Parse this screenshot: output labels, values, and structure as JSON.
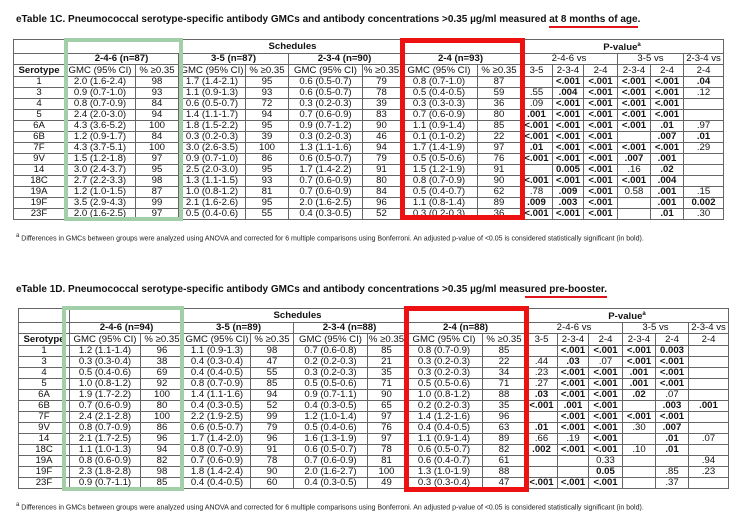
{
  "table_c": {
    "title_main": "eTable 1C. Pneumococcal serotype-specific antibody GMCs and antibody concentrations >0.35 µg/ml measured ",
    "title_emph": "at 8 months of age",
    "title_end": ".",
    "schedules_label": "Schedules",
    "pvalue_label": "P-value",
    "pvalue_sup": "a",
    "groups": [
      "2-4-6 (n=87)",
      "3-5 (n=87)",
      "2-3-4 (n=90)",
      "2-4 (n=93)"
    ],
    "pgroups": [
      "2-4-6 vs",
      "3-5 vs",
      "2-3-4 vs"
    ],
    "col_headers": [
      "Serotype",
      "GMC (95% CI)",
      "% ≥0.35",
      "GMC (95% CI)",
      "% ≥0.35",
      "GMC (95% CI)",
      "% ≥0.35",
      "GMC (95% CI)",
      "% ≥0.35",
      "3-5",
      "2-3-4",
      "2-4",
      "2-3-4",
      "2-4",
      "2-4"
    ],
    "rows": [
      [
        "1",
        "2.0 (1.6-2.4)",
        "98",
        "1.7 (1.4-2.1)",
        "95",
        "0.6 (0.5-0.7)",
        "79",
        "0.8 (0.7-1.0)",
        "87",
        "",
        "<.001",
        "<.001",
        "<.001",
        "<.001",
        ".04"
      ],
      [
        "3",
        "0.9 (0.7-1.0)",
        "93",
        "1.1 (0.9-1.3)",
        "93",
        "0.6 (0.5-0.7)",
        "78",
        "0.5 (0.4-0.5)",
        "59",
        ".55",
        ".004",
        "<.001",
        "<.001",
        "<.001",
        ".12"
      ],
      [
        "4",
        "0.8 (0.7-0.9)",
        "84",
        "0.6 (0.5-0.7)",
        "72",
        "0.3 (0.2-0.3)",
        "39",
        "0.3 (0.3-0.3)",
        "36",
        ".09",
        "<.001",
        "<.001",
        "<.001",
        "<.001",
        ""
      ],
      [
        "5",
        "2.4 (2.0-3.0)",
        "94",
        "1.4 (1.1-1.7)",
        "94",
        "0.7 (0.6-0.9)",
        "83",
        "0.7 (0.6-0.9)",
        "80",
        ".001",
        "<.001",
        "<.001",
        "<.001",
        "<.001",
        ""
      ],
      [
        "6A",
        "4.3 (3.6-5.2)",
        "100",
        "1.8 (1.5-2.2)",
        "95",
        "0.9 (0.7-1.2)",
        "90",
        "1.1 (0.9-1.4)",
        "85",
        "<.001",
        "<.001",
        "<.001",
        "<.001",
        ".01",
        ".97"
      ],
      [
        "6B",
        "1.2 (0.9-1.7)",
        "84",
        "0.3 (0.2-0.3)",
        "39",
        "0.3 (0.2-0.3)",
        "46",
        "0.1 (0.1-0.2)",
        "22",
        "<.001",
        "<.001",
        "<.001",
        "",
        ".007",
        ".01"
      ],
      [
        "7F",
        "4.3 (3.7-5.1)",
        "100",
        "3.0 (2.6-3.5)",
        "100",
        "1.3 (1.1-1.6)",
        "94",
        "1.7 (1.4-1.9)",
        "97",
        ".01",
        "<.001",
        "<.001",
        "<.001",
        "<.001",
        ".29"
      ],
      [
        "9V",
        "1.5 (1.2-1.8)",
        "97",
        "0.9 (0.7-1.0)",
        "86",
        "0.6 (0.5-0.7)",
        "79",
        "0.5 (0.5-0.6)",
        "76",
        "<.001",
        "<.001",
        "<.001",
        ".007",
        ".001",
        ""
      ],
      [
        "14",
        "3.0 (2.4-3.7)",
        "95",
        "2.5 (2.0-3.0)",
        "95",
        "1.7 (1.4-2.2)",
        "91",
        "1.5 (1.2-1.9)",
        "91",
        "",
        "0.005",
        "<.001",
        ".16",
        ".02",
        ""
      ],
      [
        "18C",
        "2.7 (2.2-3.3)",
        "98",
        "1.3 (1.1-1.5)",
        "93",
        "0.7 (0.6-0.9)",
        "80",
        "0.8 (0.7-0.9)",
        "90",
        "<.001",
        "<.001",
        "<.001",
        "<.001",
        ".004",
        ""
      ],
      [
        "19A",
        "1.2 (1.0-1.5)",
        "87",
        "1.0 (0.8-1.2)",
        "81",
        "0.7 (0.6-0.9)",
        "84",
        "0.5 (0.4-0.7)",
        "62",
        ".78",
        ".009",
        "<.001",
        "0.58",
        ".001",
        ".15"
      ],
      [
        "19F",
        "3.5 (2.9-4.3)",
        "99",
        "2.1 (1.6-2.6)",
        "95",
        "2.0 (1.6-2.5)",
        "96",
        "1.1 (0.8-1.4)",
        "89",
        ".009",
        ".003",
        "<.001",
        "",
        ".001",
        "0.002"
      ],
      [
        "23F",
        "2.0 (1.6-2.5)",
        "97",
        "0.5 (0.4-0.6)",
        "55",
        "0.4 (0.3-0.5)",
        "52",
        "0.3 (0.2-0.3)",
        "36",
        "<.001",
        "<.001",
        "<.001",
        "",
        ".01",
        ".30"
      ]
    ],
    "footnote_sup": "a",
    "footnote": " Differences in GMCs between groups were analyzed using ANOVA and corrected for 6 multiple comparisons using Bonferroni. An adjusted p-value of <0.05 is considered statistically significant (in bold)."
  },
  "table_d": {
    "title_main": "eTable 1D. Pneumococcal serotype-specific antibody GMCs and antibody concentrations >0.35 µg/ml meas",
    "title_emph": "ured pre-booster.",
    "title_end": "",
    "schedules_label": "Schedules",
    "pvalue_label": "P-value",
    "pvalue_sup": "a",
    "groups": [
      "2-4-6 (n=94)",
      "3-5 (n=89)",
      "2-3-4 (n=88)",
      "2-4 (n=88)"
    ],
    "pgroups": [
      "2-4-6 vs",
      "3-5 vs",
      "2-3-4 vs"
    ],
    "col_headers": [
      "Serotype",
      "GMC (95% CI)",
      "% ≥0.35",
      "GMC (95% CI)",
      "% ≥0.35",
      "GMC (95% CI)",
      "% ≥0.35",
      "GMC (95% CI)",
      "% ≥0.35",
      "3-5",
      "2-3-4",
      "2-4",
      "2-3-4",
      "2-4",
      "2-4"
    ],
    "rows": [
      [
        "1",
        "1.2 (1.1-1.4)",
        "96",
        "1.1 (0.9-1.3)",
        "98",
        "0.7 (0.6-0.8)",
        "85",
        "0.8 (0.7-0.9)",
        "85",
        "",
        "<.001",
        "<.001",
        "<.001",
        "0.003",
        ""
      ],
      [
        "3",
        "0.3 (0.3-0.4)",
        "38",
        "0.4 (0.3-0.4)",
        "47",
        "0.2 (0.2-0.3)",
        "21",
        "0.3 (0.2-0.3)",
        "22",
        ".44",
        ".03",
        ".07",
        "<.001",
        "<.001",
        ""
      ],
      [
        "4",
        "0.5 (0.4-0.6)",
        "69",
        "0.4 (0.4-0.5)",
        "55",
        "0.3 (0.2-0.3)",
        "35",
        "0.3 (0.2-0.3)",
        "34",
        ".23",
        "<.001",
        "<.001",
        ".001",
        "<.001",
        ""
      ],
      [
        "5",
        "1.0 (0.8-1.2)",
        "92",
        "0.8 (0.7-0.9)",
        "85",
        "0.5 (0.5-0.6)",
        "71",
        "0.5 (0.5-0.6)",
        "71",
        ".27",
        "<.001",
        "<.001",
        ".001",
        "<.001",
        ""
      ],
      [
        "6A",
        "1.9 (1.7-2.2)",
        "100",
        "1.4 (1.1-1.6)",
        "94",
        "0.9 (0.7-1.1)",
        "90",
        "1.0 (0.8-1.2)",
        "88",
        ".03",
        "<.001",
        "<.001",
        ".02",
        ".07",
        ""
      ],
      [
        "6B",
        "0.7 (0.6-0.9)",
        "80",
        "0.4 (0.3-0.5)",
        "52",
        "0.4 (0.3-0.5)",
        "65",
        "0.2 (0.2-0.3)",
        "35",
        "<.001",
        ".001",
        "<.001",
        "",
        ".003",
        ".001"
      ],
      [
        "7F",
        "2.4 (2.1-2.8)",
        "100",
        "2.2 (1.9-2.5)",
        "99",
        "1.2 (1.0-1.4)",
        "97",
        "1.4 (1.2-1.6)",
        "96",
        "",
        "<.001",
        "<.001",
        "<.001",
        "<.001",
        ""
      ],
      [
        "9V",
        "0.8 (0.7-0.9)",
        "86",
        "0.6 (0.5-0.7)",
        "79",
        "0.5 (0.4-0.6)",
        "76",
        "0.4 (0.4-0.5)",
        "63",
        ".01",
        "<.001",
        "<.001",
        ".30",
        ".007",
        ""
      ],
      [
        "14",
        "2.1 (1.7-2.5)",
        "96",
        "1.7 (1.4-2.0)",
        "96",
        "1.6 (1.3-1.9)",
        "97",
        "1.1 (0.9-1.4)",
        "89",
        ".66",
        ".19",
        "<.001",
        "",
        ".01",
        ".07"
      ],
      [
        "18C",
        "1.1 (1.0-1.3)",
        "94",
        "0.8 (0.7-0.9)",
        "91",
        "0.6 (0.5-0.7)",
        "78",
        "0.6 (0.5-0.7)",
        "82",
        ".002",
        "<.001",
        "<.001",
        ".10",
        ".01",
        ""
      ],
      [
        "19A",
        "0.8 (0.6-0.9)",
        "82",
        "0.7 (0.6-0.9)",
        "78",
        "0.7 (0.6-0.9)",
        "81",
        "0.6 (0.4-0.7)",
        "61",
        "",
        "",
        "0.33",
        "",
        "",
        ".94"
      ],
      [
        "19F",
        "2.3 (1.8-2.8)",
        "98",
        "1.8 (1.4-2.4)",
        "90",
        "2.0 (1.6-2.7)",
        "100",
        "1.3 (1.0-1.9)",
        "88",
        "",
        "",
        "0.05",
        "",
        ".85",
        ".23"
      ],
      [
        "23F",
        "0.9 (0.7-1.1)",
        "85",
        "0.4 (0.4-0.5)",
        "60",
        "0.4 (0.3-0.5)",
        "49",
        "0.3 (0.3-0.4)",
        "47",
        "<.001",
        "<.001",
        "<.001",
        "",
        ".37",
        ""
      ]
    ],
    "footnote_sup": "a",
    "footnote": " Differences in GMCs between groups were analyzed using ANOVA and corrected for 6 multiple comparisons using Bonferroni. An adjusted p-value of <0.05 is considered statistically significant (in bold)."
  },
  "colors": {
    "highlight_green": "#a3cfa8",
    "highlight_red": "#ee1111",
    "underline_red": "#e0141b"
  }
}
